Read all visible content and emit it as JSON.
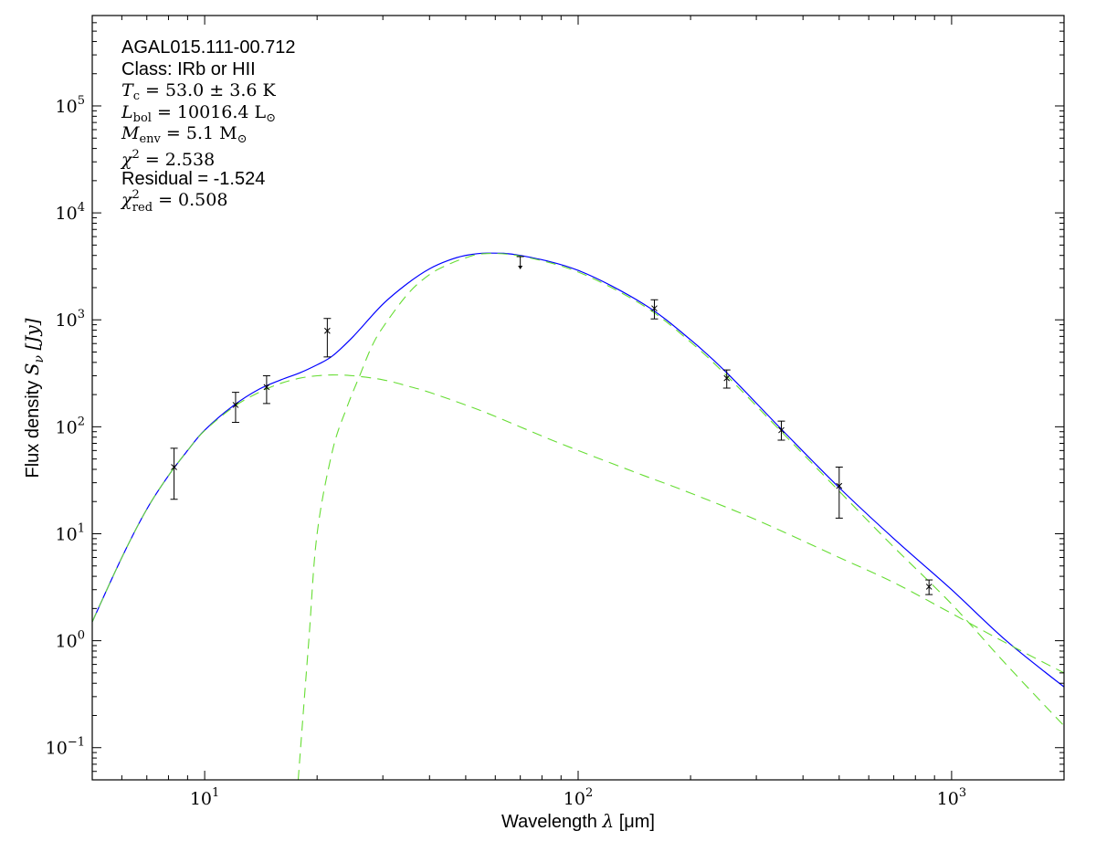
{
  "chart_data": {
    "type": "scatter",
    "title": "",
    "xlabel_text": "Wavelength",
    "xlabel_symbol": "λ",
    "xlabel_unit": "[μm]",
    "ylabel_text": "Flux density",
    "ylabel_symbol": "S",
    "ylabel_sub": "ν",
    "ylabel_unit": "[Jy]",
    "xscale": "log",
    "yscale": "log",
    "xlim": [
      5,
      2000
    ],
    "ylim": [
      0.05,
      700000
    ],
    "grid": false,
    "xticks": [
      {
        "base": "10",
        "exp": "1"
      },
      {
        "base": "10",
        "exp": "2"
      },
      {
        "base": "10",
        "exp": "3"
      }
    ],
    "yticks": [
      {
        "base": "10",
        "exp": "−1"
      },
      {
        "base": "10",
        "exp": "0"
      },
      {
        "base": "10",
        "exp": "1"
      },
      {
        "base": "10",
        "exp": "2"
      },
      {
        "base": "10",
        "exp": "3"
      },
      {
        "base": "10",
        "exp": "4"
      },
      {
        "base": "10",
        "exp": "5"
      }
    ],
    "annotations": {
      "source": "AGAL015.111-00.712",
      "class": "Class: IRb or HII",
      "tc_sym": "T",
      "tc_sub": "c",
      "tc_val": " = 53.0 ± 3.6 K",
      "lbol_sym": "L",
      "lbol_sub": "bol",
      "lbol_val": " = 10016.4 L",
      "lbol_sub2": "⊙",
      "menv_sym": "M",
      "menv_sub": "env",
      "menv_val": " = 5.1 M",
      "menv_sub2": "⊙",
      "chi2_sym": "χ",
      "chi2_sup": "2",
      "chi2_val": " = 2.538",
      "residual": "Residual = -1.524",
      "chired_sym": "χ",
      "chired_sup": "2",
      "chired_sub": "red",
      "chired_val": " = 0.508"
    },
    "points": [
      {
        "x": 8.28,
        "y": 42,
        "ylo": 21,
        "yhi": 63
      },
      {
        "x": 12.1,
        "y": 160,
        "ylo": 110,
        "yhi": 210
      },
      {
        "x": 14.65,
        "y": 235,
        "ylo": 165,
        "yhi": 300
      },
      {
        "x": 21.3,
        "y": 790,
        "ylo": 450,
        "yhi": 1030
      },
      {
        "x": 160,
        "y": 1280,
        "ylo": 1020,
        "yhi": 1540
      },
      {
        "x": 250,
        "y": 285,
        "ylo": 230,
        "yhi": 340
      },
      {
        "x": 350,
        "y": 93,
        "ylo": 75,
        "yhi": 113
      },
      {
        "x": 500,
        "y": 28,
        "ylo": 14,
        "yhi": 42
      },
      {
        "x": 870,
        "y": 3.2,
        "ylo": 2.7,
        "yhi": 3.7
      }
    ],
    "upper_limits": [
      {
        "x": 70,
        "y": 3900
      }
    ],
    "colors": {
      "total_model": "#0000ff",
      "components": "#66dd33",
      "points": "#000000"
    },
    "series": [
      {
        "style": "solid",
        "x": [
          5,
          6,
          7,
          8,
          9,
          10,
          12,
          14,
          16,
          18,
          20,
          22,
          25,
          30,
          35,
          40,
          45,
          50,
          57,
          70,
          100,
          150,
          200,
          250,
          350,
          500,
          700,
          1000,
          1400,
          2000
        ],
        "y": [
          1.5,
          6,
          17,
          35,
          60,
          93,
          160,
          225,
          275,
          320,
          380,
          460,
          700,
          1400,
          2200,
          3000,
          3600,
          4000,
          4200,
          4000,
          2900,
          1400,
          650,
          320,
          95,
          27,
          9,
          3.0,
          1.0,
          0.37
        ]
      },
      {
        "style": "dashed",
        "x": [
          5,
          6,
          7,
          8,
          9,
          10,
          12,
          14,
          16,
          18,
          20,
          22,
          25,
          30,
          35,
          40,
          50,
          60,
          80,
          100,
          150,
          200,
          300,
          500,
          700,
          1000,
          1400,
          2000
        ],
        "y": [
          1.5,
          6,
          17,
          35,
          60,
          92,
          155,
          210,
          255,
          285,
          300,
          305,
          300,
          275,
          240,
          210,
          160,
          125,
          82,
          60,
          35,
          24,
          13.5,
          6.0,
          3.5,
          1.8,
          0.95,
          0.5
        ]
      },
      {
        "style": "dashed",
        "x": [
          17.8,
          19,
          20,
          22,
          24,
          26,
          28,
          30,
          35,
          40,
          45,
          50,
          56,
          70,
          100,
          150,
          200,
          250,
          350,
          500,
          700,
          1000,
          1400,
          2000
        ],
        "y": [
          0.05,
          1,
          10,
          60,
          150,
          300,
          560,
          850,
          1750,
          2650,
          3300,
          3800,
          4150,
          3950,
          2800,
          1350,
          620,
          300,
          90,
          25,
          7.5,
          2.2,
          0.6,
          0.16
        ]
      }
    ]
  }
}
